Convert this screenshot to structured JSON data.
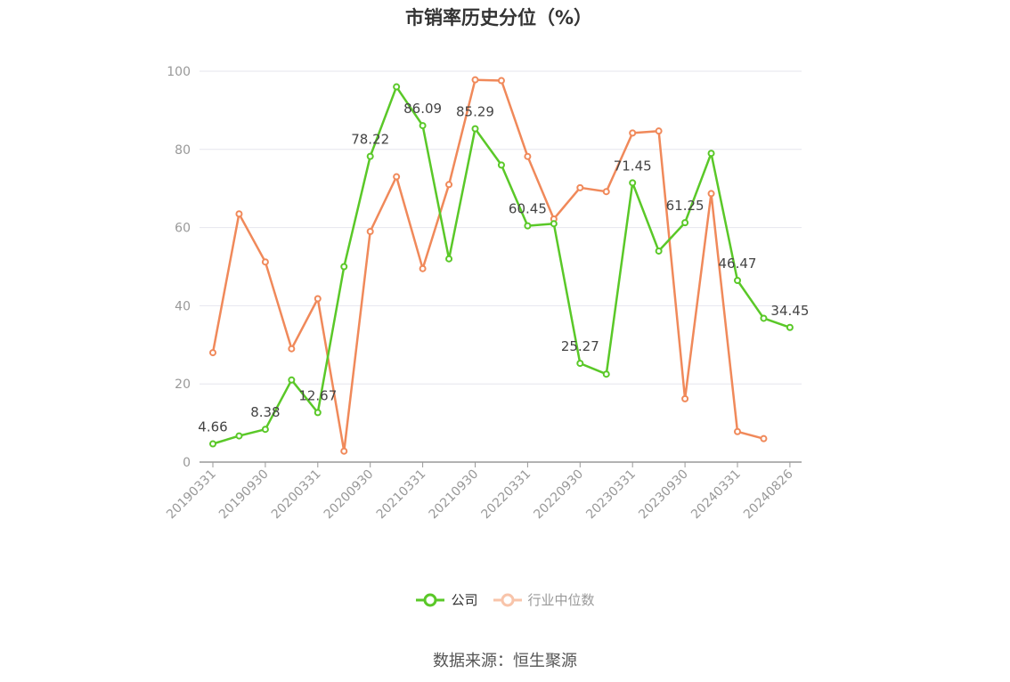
{
  "chart_data": {
    "type": "line",
    "title": "市销率历史分位（%）",
    "ylim": [
      0,
      100
    ],
    "yticks": [
      0,
      20,
      40,
      60,
      80,
      100
    ],
    "xtick_labels": [
      "20190331",
      "20190930",
      "20200331",
      "20200930",
      "20210331",
      "20210930",
      "20220331",
      "20220930",
      "20230331",
      "20230930",
      "20240331",
      "20240826"
    ],
    "grid": true,
    "legend_position": "bottom",
    "series": [
      {
        "name": "公司",
        "color": "#5ac828",
        "values": [
          4.66,
          6.7,
          8.38,
          21.0,
          12.67,
          50.0,
          78.22,
          96.0,
          86.09,
          52.0,
          85.29,
          76.0,
          60.45,
          61.0,
          25.27,
          22.5,
          71.45,
          54.0,
          61.25,
          79.0,
          46.47,
          36.8,
          34.45
        ],
        "point_labels": {
          "0": "4.66",
          "2": "8.38",
          "4": "12.67",
          "6": "78.22",
          "8": "86.09",
          "10": "85.29",
          "12": "60.45",
          "14": "25.27",
          "16": "71.45",
          "18": "61.25",
          "20": "46.47",
          "22": "34.45"
        }
      },
      {
        "name": "行业中位数",
        "color": "#f0895a",
        "values": [
          28.0,
          63.5,
          51.2,
          29.0,
          41.8,
          2.8,
          59.0,
          73.0,
          49.5,
          71.0,
          97.8,
          97.6,
          78.2,
          62.2,
          70.2,
          69.2,
          84.2,
          84.7,
          16.2,
          68.7,
          7.8,
          6.0,
          null
        ]
      }
    ]
  },
  "source_text": "数据来源：恒生聚源"
}
